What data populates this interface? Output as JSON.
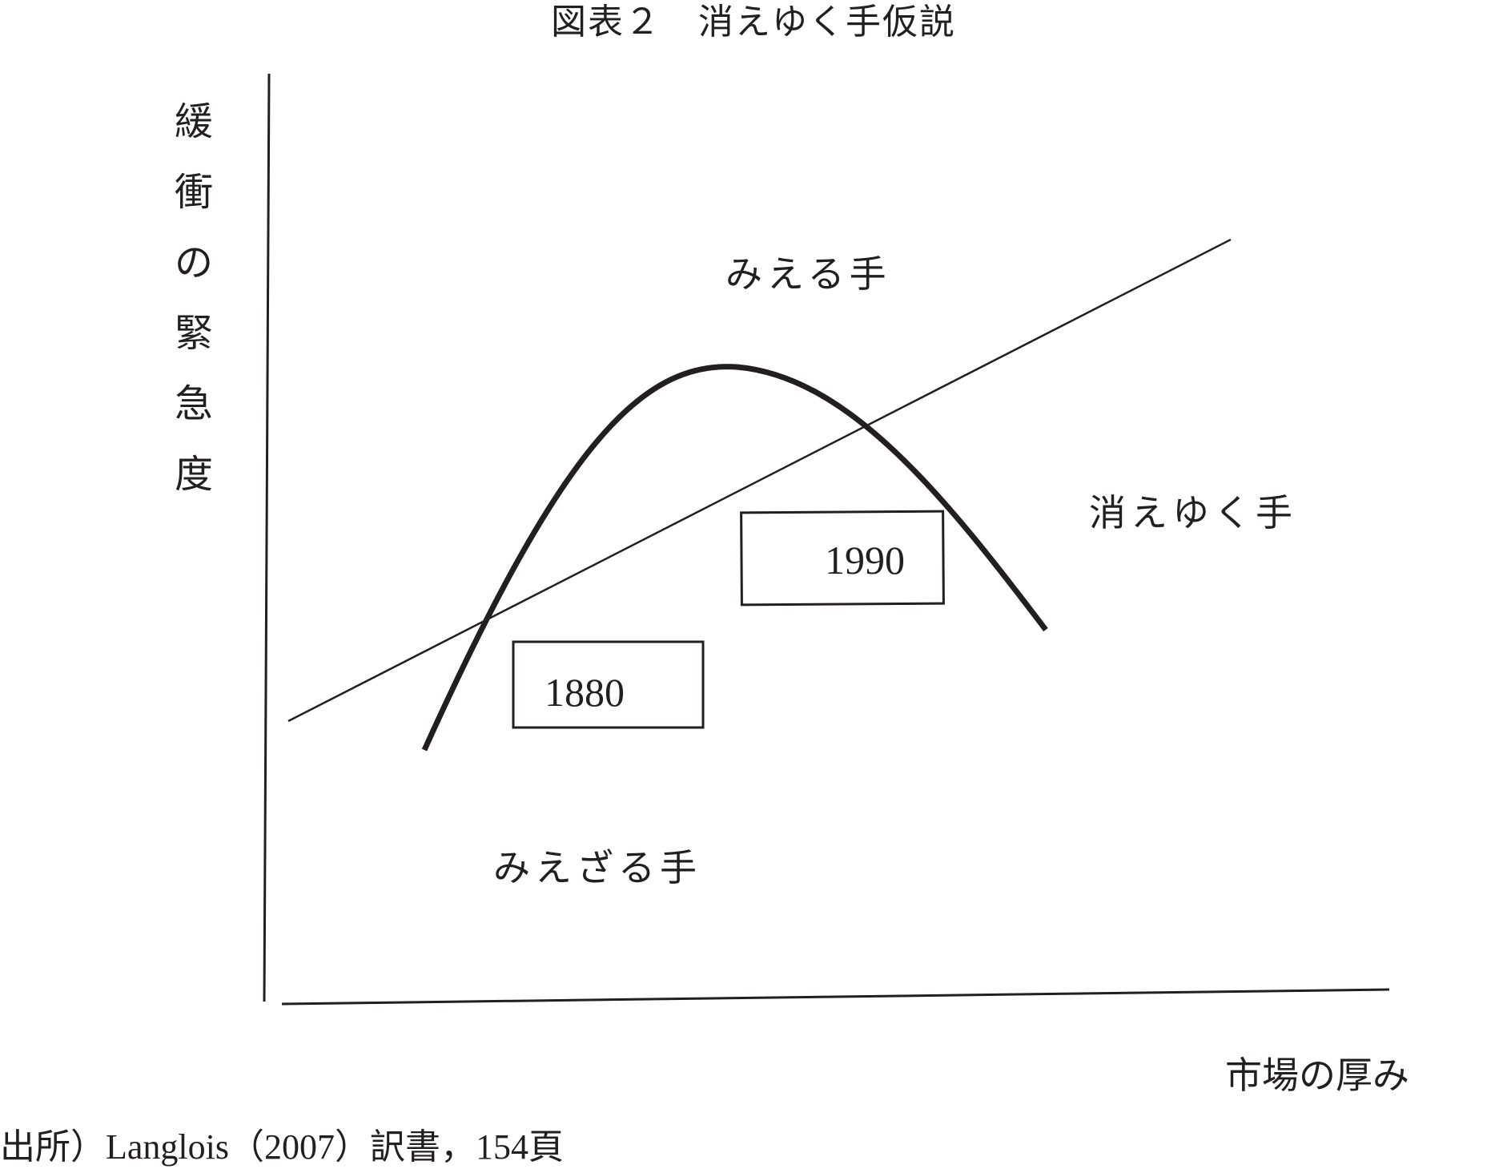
{
  "title": "図表２　消えゆく手仮説",
  "axes": {
    "ylabel_chars": [
      "緩",
      "衝",
      "の",
      "緊",
      "急",
      "度"
    ],
    "xlabel": "市場の厚み"
  },
  "regions": {
    "visible_hand": "みえる手",
    "vanishing_hand": "消えゆく手",
    "invisible_hand": "みえざる手"
  },
  "boxes": {
    "year_1880": "1880",
    "year_1990": "1990"
  },
  "source": "出所）Langlois（2007）訳書，154頁",
  "colors": {
    "ink": "#231f20",
    "background": "#ffffff"
  }
}
